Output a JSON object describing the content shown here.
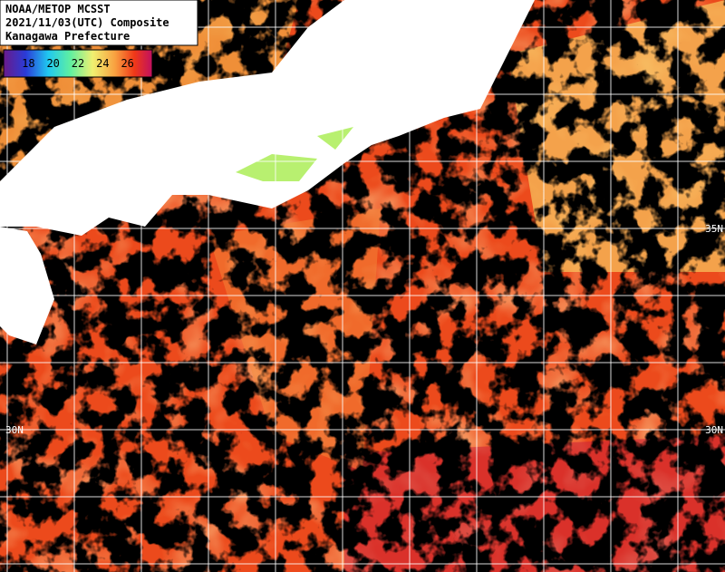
{
  "header": {
    "lines": [
      "NOAA/METOP MCSST",
      "2021/11/03(UTC) Composite",
      "Kanagawa Prefecture"
    ]
  },
  "colorbar": {
    "range": [
      16,
      28
    ],
    "ticks": [
      18,
      20,
      22,
      24,
      26
    ]
  },
  "grid_labels": [
    {
      "text": "35N",
      "side": "right",
      "row": 3
    },
    {
      "text": "30N",
      "side": "left",
      "row": 6
    },
    {
      "text": "30N",
      "side": "right",
      "row": 6
    }
  ]
}
